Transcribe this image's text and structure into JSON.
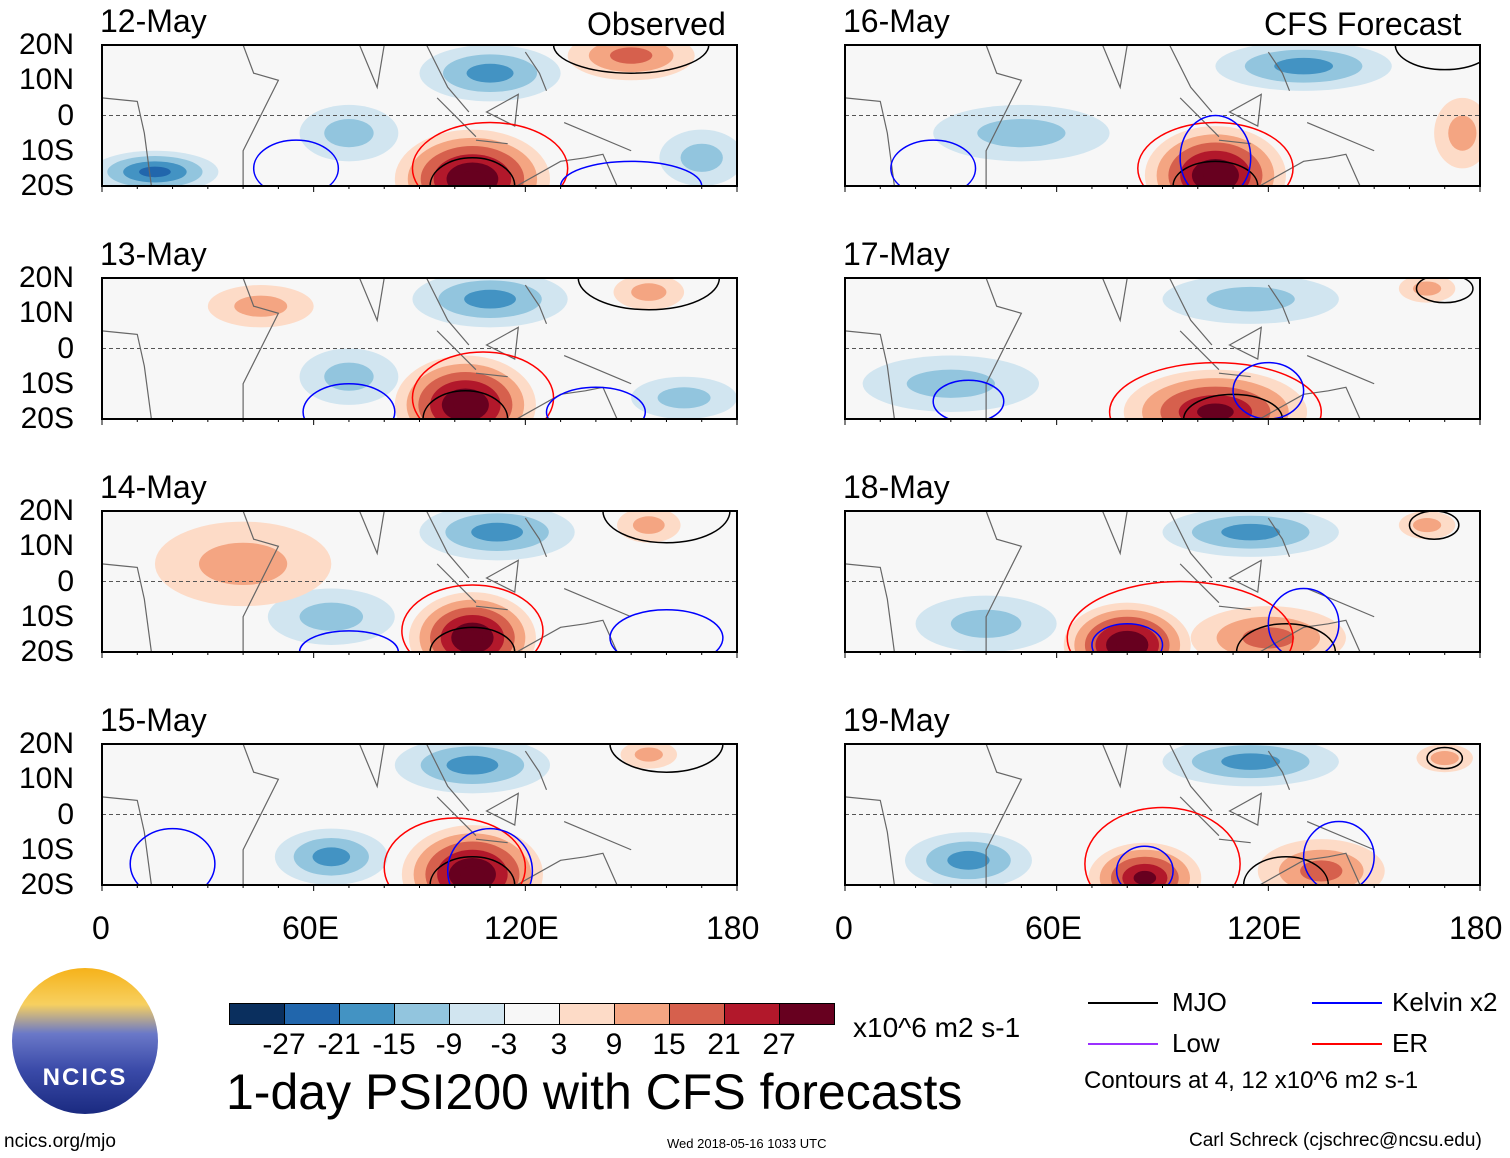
{
  "title": "1-day PSI200 with CFS forecasts",
  "units": "x10^6 m2 s-1",
  "observed_label": "Observed",
  "forecast_label": "CFS Forecast",
  "footer": {
    "site": "ncics.org/mjo",
    "timestamp": "Wed 2018-05-16 1033 UTC",
    "author": "Carl Schreck (cjschrec@ncsu.edu)",
    "logo_text": "NCICS"
  },
  "legend": {
    "items": [
      {
        "label": "MJO",
        "color": "#000000"
      },
      {
        "label": "Kelvin x2",
        "color": "#0000ff"
      },
      {
        "label": "Low",
        "color": "#9b30ff"
      },
      {
        "label": "ER",
        "color": "#ff0000"
      }
    ],
    "note": "Contours at 4, 12 x10^6 m2 s-1"
  },
  "colorbar": {
    "ticks": [
      "-27",
      "-21",
      "-15",
      "-9",
      "-3",
      "3",
      "9",
      "15",
      "21",
      "27"
    ],
    "colors": [
      "#0a2f5e",
      "#2166ac",
      "#4393c3",
      "#92c5de",
      "#d1e5f0",
      "#f7f7f7",
      "#fddbc7",
      "#f4a582",
      "#d6604d",
      "#b2182b",
      "#67001f"
    ]
  },
  "chart_data": {
    "type": "heatmap",
    "xlabel": "",
    "ylabel": "",
    "xlim": [
      0,
      180
    ],
    "ylim": [
      -20,
      20
    ],
    "xticks": [
      "0",
      "60E",
      "120E",
      "180"
    ],
    "yticks": [
      "20N",
      "10N",
      "0",
      "10S",
      "20S"
    ],
    "panels": [
      {
        "date": "12-May",
        "kind": "observed",
        "anoms": [
          {
            "lon": 105,
            "lat": -18,
            "rlon": 22,
            "rlat": 14,
            "value": 30
          },
          {
            "lon": 150,
            "lat": 17,
            "rlon": 18,
            "rlat": 7,
            "value": 10
          },
          {
            "lon": 110,
            "lat": 12,
            "rlon": 20,
            "rlat": 8,
            "value": -12
          },
          {
            "lon": 15,
            "lat": -16,
            "rlon": 18,
            "rlat": 6,
            "value": -20
          },
          {
            "lon": 70,
            "lat": -5,
            "rlon": 14,
            "rlat": 8,
            "value": -8
          },
          {
            "lon": 170,
            "lat": -12,
            "rlon": 12,
            "rlat": 8,
            "value": -8
          }
        ],
        "contours": [
          {
            "type": "MJO",
            "lon": 105,
            "lat": -20,
            "rlon": 12,
            "rlat": 8
          },
          {
            "type": "MJO",
            "lon": 150,
            "lat": 20,
            "rlon": 22,
            "rlat": 8
          },
          {
            "type": "ER",
            "lon": 110,
            "lat": -15,
            "rlon": 22,
            "rlat": 13
          },
          {
            "type": "Kelvin",
            "lon": 55,
            "lat": -15,
            "rlon": 12,
            "rlat": 8
          },
          {
            "type": "Kelvin",
            "lon": 150,
            "lat": -20,
            "rlon": 20,
            "rlat": 7
          }
        ]
      },
      {
        "date": "13-May",
        "kind": "observed",
        "anoms": [
          {
            "lon": 103,
            "lat": -16,
            "rlon": 20,
            "rlat": 14,
            "value": 30
          },
          {
            "lon": 155,
            "lat": 16,
            "rlon": 10,
            "rlat": 5,
            "value": 9
          },
          {
            "lon": 110,
            "lat": 14,
            "rlon": 22,
            "rlat": 8,
            "value": -12
          },
          {
            "lon": 70,
            "lat": -8,
            "rlon": 14,
            "rlat": 8,
            "value": -8
          },
          {
            "lon": 165,
            "lat": -14,
            "rlon": 15,
            "rlat": 6,
            "value": -8
          },
          {
            "lon": 45,
            "lat": 12,
            "rlon": 15,
            "rlat": 6,
            "value": 5
          }
        ],
        "contours": [
          {
            "type": "MJO",
            "lon": 103,
            "lat": -20,
            "rlon": 12,
            "rlat": 8
          },
          {
            "type": "MJO",
            "lon": 155,
            "lat": 20,
            "rlon": 20,
            "rlat": 9
          },
          {
            "type": "ER",
            "lon": 108,
            "lat": -14,
            "rlon": 20,
            "rlat": 13
          },
          {
            "type": "Kelvin",
            "lon": 70,
            "lat": -18,
            "rlon": 13,
            "rlat": 8
          },
          {
            "type": "Kelvin",
            "lon": 140,
            "lat": -18,
            "rlon": 14,
            "rlat": 7
          }
        ]
      },
      {
        "date": "14-May",
        "kind": "observed",
        "anoms": [
          {
            "lon": 105,
            "lat": -16,
            "rlon": 18,
            "rlat": 13,
            "value": 30
          },
          {
            "lon": 155,
            "lat": 16,
            "rlon": 9,
            "rlat": 5,
            "value": 9
          },
          {
            "lon": 112,
            "lat": 14,
            "rlon": 22,
            "rlat": 8,
            "value": -12
          },
          {
            "lon": 65,
            "lat": -10,
            "rlon": 18,
            "rlat": 8,
            "value": -8
          },
          {
            "lon": 40,
            "lat": 5,
            "rlon": 25,
            "rlat": 12,
            "value": 4
          }
        ],
        "contours": [
          {
            "type": "MJO",
            "lon": 105,
            "lat": -20,
            "rlon": 12,
            "rlat": 7
          },
          {
            "type": "MJO",
            "lon": 160,
            "lat": 20,
            "rlon": 18,
            "rlat": 9
          },
          {
            "type": "ER",
            "lon": 105,
            "lat": -14,
            "rlon": 20,
            "rlat": 13
          },
          {
            "type": "Kelvin",
            "lon": 160,
            "lat": -16,
            "rlon": 16,
            "rlat": 8
          },
          {
            "type": "Kelvin",
            "lon": 70,
            "lat": -20,
            "rlon": 14,
            "rlat": 6
          }
        ]
      },
      {
        "date": "15-May",
        "kind": "observed",
        "anoms": [
          {
            "lon": 105,
            "lat": -17,
            "rlon": 20,
            "rlat": 14,
            "value": 30
          },
          {
            "lon": 155,
            "lat": 17,
            "rlon": 8,
            "rlat": 4,
            "value": 5
          },
          {
            "lon": 105,
            "lat": 14,
            "rlon": 22,
            "rlat": 8,
            "value": -12
          },
          {
            "lon": 65,
            "lat": -12,
            "rlon": 16,
            "rlat": 8,
            "value": -10
          }
        ],
        "contours": [
          {
            "type": "MJO",
            "lon": 105,
            "lat": -20,
            "rlon": 12,
            "rlat": 8
          },
          {
            "type": "MJO",
            "lon": 160,
            "lat": 20,
            "rlon": 16,
            "rlat": 8
          },
          {
            "type": "ER",
            "lon": 100,
            "lat": -15,
            "rlon": 20,
            "rlat": 14
          },
          {
            "type": "Kelvin",
            "lon": 110,
            "lat": -16,
            "rlon": 12,
            "rlat": 12
          },
          {
            "type": "Kelvin",
            "lon": 20,
            "lat": -14,
            "rlon": 12,
            "rlat": 10
          }
        ]
      },
      {
        "date": "16-May",
        "kind": "forecast",
        "anoms": [
          {
            "lon": 105,
            "lat": -17,
            "rlon": 20,
            "rlat": 14,
            "value": 30
          },
          {
            "lon": 130,
            "lat": 14,
            "rlon": 25,
            "rlat": 7,
            "value": -12
          },
          {
            "lon": 50,
            "lat": -5,
            "rlon": 25,
            "rlat": 8,
            "value": -6
          },
          {
            "lon": 175,
            "lat": -5,
            "rlon": 8,
            "rlat": 10,
            "value": 5
          }
        ],
        "contours": [
          {
            "type": "MJO",
            "lon": 105,
            "lat": -20,
            "rlon": 12,
            "rlat": 7
          },
          {
            "type": "MJO",
            "lon": 170,
            "lat": 20,
            "rlon": 14,
            "rlat": 7
          },
          {
            "type": "ER",
            "lon": 105,
            "lat": -15,
            "rlon": 22,
            "rlat": 13
          },
          {
            "type": "Kelvin",
            "lon": 105,
            "lat": -12,
            "rlon": 10,
            "rlat": 12
          },
          {
            "type": "Kelvin",
            "lon": 25,
            "lat": -15,
            "rlon": 12,
            "rlat": 8
          }
        ]
      },
      {
        "date": "17-May",
        "kind": "forecast",
        "anoms": [
          {
            "lon": 105,
            "lat": -18,
            "rlon": 26,
            "rlat": 12,
            "value": 25
          },
          {
            "lon": 115,
            "lat": 14,
            "rlon": 25,
            "rlat": 7,
            "value": -9
          },
          {
            "lon": 30,
            "lat": -10,
            "rlon": 25,
            "rlat": 8,
            "value": -6
          },
          {
            "lon": 165,
            "lat": 17,
            "rlon": 8,
            "rlat": 4,
            "value": 8
          }
        ],
        "contours": [
          {
            "type": "MJO",
            "lon": 110,
            "lat": -20,
            "rlon": 14,
            "rlat": 7
          },
          {
            "type": "MJO",
            "lon": 170,
            "lat": 17,
            "rlon": 8,
            "rlat": 4
          },
          {
            "type": "ER",
            "lon": 105,
            "lat": -18,
            "rlon": 30,
            "rlat": 14
          },
          {
            "type": "Kelvin",
            "lon": 120,
            "lat": -12,
            "rlon": 10,
            "rlat": 8
          },
          {
            "type": "Kelvin",
            "lon": 35,
            "lat": -15,
            "rlon": 10,
            "rlat": 6
          }
        ]
      },
      {
        "date": "18-May",
        "kind": "forecast",
        "anoms": [
          {
            "lon": 80,
            "lat": -18,
            "rlon": 18,
            "rlat": 12,
            "value": 28
          },
          {
            "lon": 120,
            "lat": -16,
            "rlon": 22,
            "rlat": 9,
            "value": 15
          },
          {
            "lon": 115,
            "lat": 14,
            "rlon": 25,
            "rlat": 7,
            "value": -12
          },
          {
            "lon": 40,
            "lat": -12,
            "rlon": 20,
            "rlat": 8,
            "value": -8
          },
          {
            "lon": 165,
            "lat": 16,
            "rlon": 8,
            "rlat": 4,
            "value": 9
          }
        ],
        "contours": [
          {
            "type": "MJO",
            "lon": 125,
            "lat": -20,
            "rlon": 14,
            "rlat": 8
          },
          {
            "type": "MJO",
            "lon": 167,
            "lat": 16,
            "rlon": 7,
            "rlat": 4
          },
          {
            "type": "ER",
            "lon": 95,
            "lat": -16,
            "rlon": 32,
            "rlat": 16
          },
          {
            "type": "Kelvin",
            "lon": 80,
            "lat": -18,
            "rlon": 10,
            "rlat": 6
          },
          {
            "type": "Kelvin",
            "lon": 130,
            "lat": -12,
            "rlon": 10,
            "rlat": 10
          }
        ]
      },
      {
        "date": "19-May",
        "kind": "forecast",
        "anoms": [
          {
            "lon": 85,
            "lat": -18,
            "rlon": 16,
            "rlat": 10,
            "value": 24
          },
          {
            "lon": 135,
            "lat": -16,
            "rlon": 18,
            "rlat": 9,
            "value": 12
          },
          {
            "lon": 115,
            "lat": 15,
            "rlon": 25,
            "rlat": 7,
            "value": -12
          },
          {
            "lon": 35,
            "lat": -13,
            "rlon": 18,
            "rlat": 8,
            "value": -10
          },
          {
            "lon": 170,
            "lat": 16,
            "rlon": 8,
            "rlat": 4,
            "value": 9
          }
        ],
        "contours": [
          {
            "type": "MJO",
            "lon": 125,
            "lat": -20,
            "rlon": 12,
            "rlat": 8
          },
          {
            "type": "MJO",
            "lon": 170,
            "lat": 16,
            "rlon": 5,
            "rlat": 3
          },
          {
            "type": "ER",
            "lon": 90,
            "lat": -14,
            "rlon": 22,
            "rlat": 16
          },
          {
            "type": "Kelvin",
            "lon": 85,
            "lat": -16,
            "rlon": 8,
            "rlat": 7
          },
          {
            "type": "Kelvin",
            "lon": 140,
            "lat": -12,
            "rlon": 10,
            "rlat": 10
          }
        ]
      }
    ]
  }
}
